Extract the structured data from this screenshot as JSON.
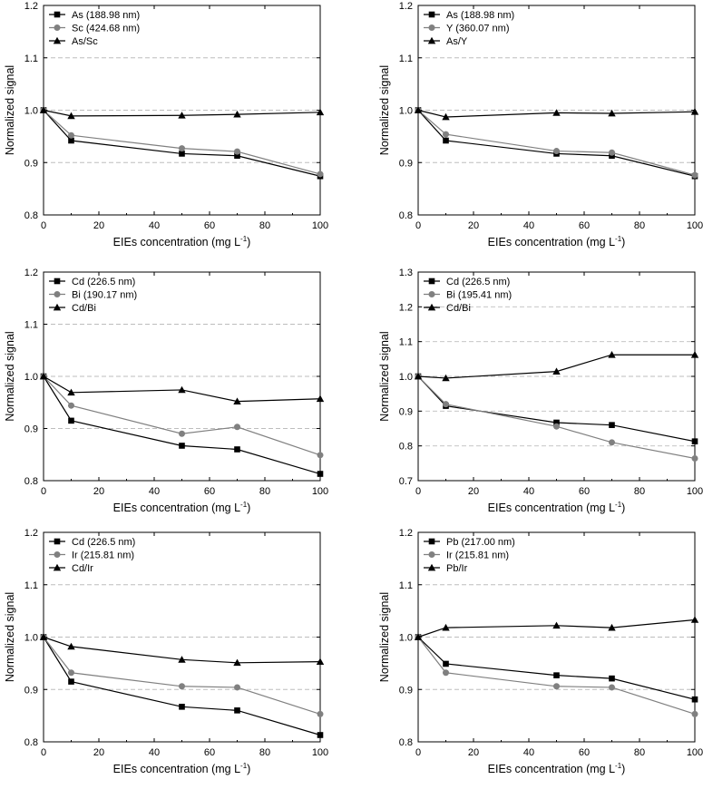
{
  "chart_data": [
    {
      "type": "line",
      "title": "",
      "xlabel": "EIEs concentration (mg L",
      "xlabel_sup": "-1",
      "xlabel_end": ")",
      "ylabel": "Normalized signal",
      "xlim": [
        0,
        100
      ],
      "ylim": [
        0.8,
        1.2
      ],
      "xticks": [
        0,
        20,
        40,
        60,
        80,
        100
      ],
      "yticks": [
        0.8,
        0.9,
        1.0,
        1.1,
        1.2
      ],
      "ytick_labels": [
        "0.8",
        "0.9",
        "1.0",
        "1.1",
        "1.2"
      ],
      "grid_y": [
        0.9,
        1.0,
        1.1
      ],
      "legend_position": "top-left",
      "x": [
        0,
        10,
        50,
        70,
        100
      ],
      "series": [
        {
          "name": "As (188.98 nm)",
          "marker": "square",
          "color": "#000000",
          "values": [
            1.0,
            0.942,
            0.917,
            0.913,
            0.874
          ]
        },
        {
          "name": "Sc (424.68 nm)",
          "marker": "circle",
          "color": "#808080",
          "values": [
            1.0,
            0.952,
            0.927,
            0.921,
            0.878
          ]
        },
        {
          "name": "As/Sc",
          "marker": "triangle",
          "color": "#000000",
          "values": [
            1.0,
            0.989,
            0.99,
            0.992,
            0.996
          ]
        }
      ]
    },
    {
      "type": "line",
      "title": "",
      "xlabel": "EIEs concentration (mg L",
      "xlabel_sup": "-1",
      "xlabel_end": ")",
      "ylabel": "Normalized signal",
      "xlim": [
        0,
        100
      ],
      "ylim": [
        0.8,
        1.2
      ],
      "xticks": [
        0,
        20,
        40,
        60,
        80,
        100
      ],
      "yticks": [
        0.8,
        0.9,
        1.0,
        1.1,
        1.2
      ],
      "ytick_labels": [
        "0.8",
        "0.9",
        "1.0",
        "1.1",
        "1.2"
      ],
      "grid_y": [
        0.9,
        1.0,
        1.1
      ],
      "legend_position": "top-left",
      "x": [
        0,
        10,
        50,
        70,
        100
      ],
      "series": [
        {
          "name": "As (188.98 nm)",
          "marker": "square",
          "color": "#000000",
          "values": [
            1.0,
            0.942,
            0.917,
            0.913,
            0.874
          ]
        },
        {
          "name": "Y (360.07 nm)",
          "marker": "circle",
          "color": "#808080",
          "values": [
            1.0,
            0.954,
            0.922,
            0.919,
            0.876
          ]
        },
        {
          "name": "As/Y",
          "marker": "triangle",
          "color": "#000000",
          "values": [
            1.0,
            0.987,
            0.995,
            0.994,
            0.997
          ]
        }
      ]
    },
    {
      "type": "line",
      "title": "",
      "xlabel": "EIEs concentration (mg L",
      "xlabel_sup": "-1",
      "xlabel_end": ")",
      "ylabel": "Normalized signal",
      "xlim": [
        0,
        100
      ],
      "ylim": [
        0.8,
        1.2
      ],
      "xticks": [
        0,
        20,
        40,
        60,
        80,
        100
      ],
      "yticks": [
        0.8,
        0.9,
        1.0,
        1.1,
        1.2
      ],
      "ytick_labels": [
        "0.8",
        "0.9",
        "1.0",
        "1.1",
        "1.2"
      ],
      "grid_y": [
        0.9,
        1.0,
        1.1
      ],
      "legend_position": "top-left",
      "x": [
        0,
        10,
        50,
        70,
        100
      ],
      "series": [
        {
          "name": "Cd (226.5 nm)",
          "marker": "square",
          "color": "#000000",
          "values": [
            1.0,
            0.915,
            0.867,
            0.86,
            0.813
          ]
        },
        {
          "name": "Bi (190.17 nm)",
          "marker": "circle",
          "color": "#808080",
          "values": [
            1.0,
            0.944,
            0.89,
            0.903,
            0.849
          ]
        },
        {
          "name": "Cd/Bi",
          "marker": "triangle",
          "color": "#000000",
          "values": [
            1.0,
            0.969,
            0.974,
            0.952,
            0.957
          ]
        }
      ]
    },
    {
      "type": "line",
      "title": "",
      "xlabel": "EIEs concentration (mg L",
      "xlabel_sup": "-1",
      "xlabel_end": ")",
      "ylabel": "Normalized signal",
      "xlim": [
        0,
        100
      ],
      "ylim": [
        0.7,
        1.3
      ],
      "xticks": [
        0,
        20,
        40,
        60,
        80,
        100
      ],
      "yticks": [
        0.7,
        0.8,
        0.9,
        1.0,
        1.1,
        1.2,
        1.3
      ],
      "ytick_labels": [
        "0.7",
        "0.8",
        "0.9",
        "1.0",
        "1.1",
        "1.2",
        "1.3"
      ],
      "grid_y": [
        0.8,
        0.9,
        1.0,
        1.1,
        1.2
      ],
      "legend_position": "top-left",
      "x": [
        0,
        10,
        50,
        70,
        100
      ],
      "series": [
        {
          "name": "Cd (226.5 nm)",
          "marker": "square",
          "color": "#000000",
          "values": [
            1.0,
            0.915,
            0.867,
            0.86,
            0.813
          ]
        },
        {
          "name": "Bi (195.41 nm)",
          "marker": "circle",
          "color": "#808080",
          "values": [
            1.0,
            0.92,
            0.856,
            0.81,
            0.764
          ]
        },
        {
          "name": "Cd/Bi",
          "marker": "triangle",
          "color": "#000000",
          "values": [
            1.0,
            0.995,
            1.014,
            1.062,
            1.062
          ]
        }
      ]
    },
    {
      "type": "line",
      "title": "",
      "xlabel": "EIEs concentration (mg L",
      "xlabel_sup": "-1",
      "xlabel_end": ")",
      "ylabel": "Normalized signal",
      "xlim": [
        0,
        100
      ],
      "ylim": [
        0.8,
        1.2
      ],
      "xticks": [
        0,
        20,
        40,
        60,
        80,
        100
      ],
      "yticks": [
        0.8,
        0.9,
        1.0,
        1.1,
        1.2
      ],
      "ytick_labels": [
        "0.8",
        "0.9",
        "1.0",
        "1.1",
        "1.2"
      ],
      "grid_y": [
        0.9,
        1.0,
        1.1
      ],
      "legend_position": "top-left",
      "x": [
        0,
        10,
        50,
        70,
        100
      ],
      "series": [
        {
          "name": "Cd (226.5 nm)",
          "marker": "square",
          "color": "#000000",
          "values": [
            1.0,
            0.915,
            0.867,
            0.86,
            0.813
          ]
        },
        {
          "name": "Ir (215.81 nm)",
          "marker": "circle",
          "color": "#808080",
          "values": [
            1.0,
            0.932,
            0.906,
            0.904,
            0.853
          ]
        },
        {
          "name": "Cd/Ir",
          "marker": "triangle",
          "color": "#000000",
          "values": [
            1.0,
            0.982,
            0.957,
            0.951,
            0.953
          ]
        }
      ]
    },
    {
      "type": "line",
      "title": "",
      "xlabel": "EIEs concentration (mg L",
      "xlabel_sup": "-1",
      "xlabel_end": ")",
      "ylabel": "Normalized signal",
      "xlim": [
        0,
        100
      ],
      "ylim": [
        0.8,
        1.2
      ],
      "xticks": [
        0,
        20,
        40,
        60,
        80,
        100
      ],
      "yticks": [
        0.8,
        0.9,
        1.0,
        1.1,
        1.2
      ],
      "ytick_labels": [
        "0.8",
        "0.9",
        "1.0",
        "1.1",
        "1.2"
      ],
      "grid_y": [
        0.9,
        1.0,
        1.1
      ],
      "legend_position": "top-left",
      "x": [
        0,
        10,
        50,
        70,
        100
      ],
      "series": [
        {
          "name": "Pb (217.00 nm)",
          "marker": "square",
          "color": "#000000",
          "values": [
            1.0,
            0.949,
            0.927,
            0.921,
            0.881
          ]
        },
        {
          "name": "Ir (215.81 nm)",
          "marker": "circle",
          "color": "#808080",
          "values": [
            1.0,
            0.932,
            0.906,
            0.904,
            0.853
          ]
        },
        {
          "name": "Pb/Ir",
          "marker": "triangle",
          "color": "#000000",
          "values": [
            1.0,
            1.018,
            1.022,
            1.018,
            1.033
          ]
        }
      ]
    }
  ]
}
